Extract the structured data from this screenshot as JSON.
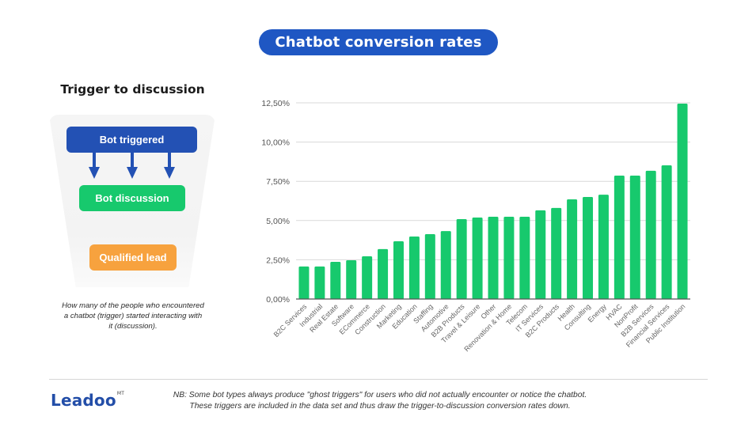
{
  "header": {
    "title": "Chatbot conversion rates"
  },
  "left_panel": {
    "title": "Trigger to discussion",
    "funnel": {
      "steps": [
        {
          "label": "Bot triggered",
          "color": "#2351b4"
        },
        {
          "label": "Bot discussion",
          "color": "#17c96d"
        },
        {
          "label": "Qualified lead",
          "color": "#f7a23e"
        }
      ],
      "arrow_icon": "arrow-down-icon"
    },
    "caption_lines": [
      "How many of the people who encountered",
      "a chatbot (trigger) started interacting with",
      "it (discussion)."
    ]
  },
  "footer": {
    "logo": "Leadoo",
    "logo_mark": "MT",
    "note_lines": [
      "NB: Some bot types always produce \"ghost triggers\" for users who did not actually encounter or notice the chatbot.",
      "These triggers are included in the data set and thus draw the trigger-to-discussion conversion rates down."
    ]
  },
  "chart_data": {
    "type": "bar",
    "title": "Chatbot conversion rates",
    "xlabel": "",
    "ylabel": "",
    "ylim": [
      0,
      12.5
    ],
    "grid": true,
    "legend": "none",
    "bar_color": "#17c96d",
    "y_ticks": [
      0,
      2.5,
      5,
      7.5,
      10,
      12.5
    ],
    "y_tick_labels": [
      "0,00%",
      "2,50%",
      "5,00%",
      "7,50%",
      "10,00%",
      "12,50%"
    ],
    "categories": [
      "B2C Services",
      "Industrial",
      "Real Estate",
      "Software",
      "ECommerce",
      "Construction",
      "Marketing",
      "Education",
      "Staffing",
      "Automotive",
      "B2B Products",
      "Travel & Leisure",
      "Other",
      "Renovation & Home",
      "Telecom",
      "IT Services",
      "B2C Products",
      "Health",
      "Consulting",
      "Energy",
      "HVAC",
      "NonProfit",
      "B2B Services",
      "Financial Services",
      "Public Institution"
    ],
    "values": [
      2.07,
      2.07,
      2.37,
      2.47,
      2.72,
      3.18,
      3.68,
      3.98,
      4.13,
      4.33,
      5.09,
      5.19,
      5.24,
      5.24,
      5.24,
      5.65,
      5.8,
      6.35,
      6.5,
      6.65,
      7.86,
      7.86,
      8.17,
      8.52,
      12.45
    ]
  }
}
